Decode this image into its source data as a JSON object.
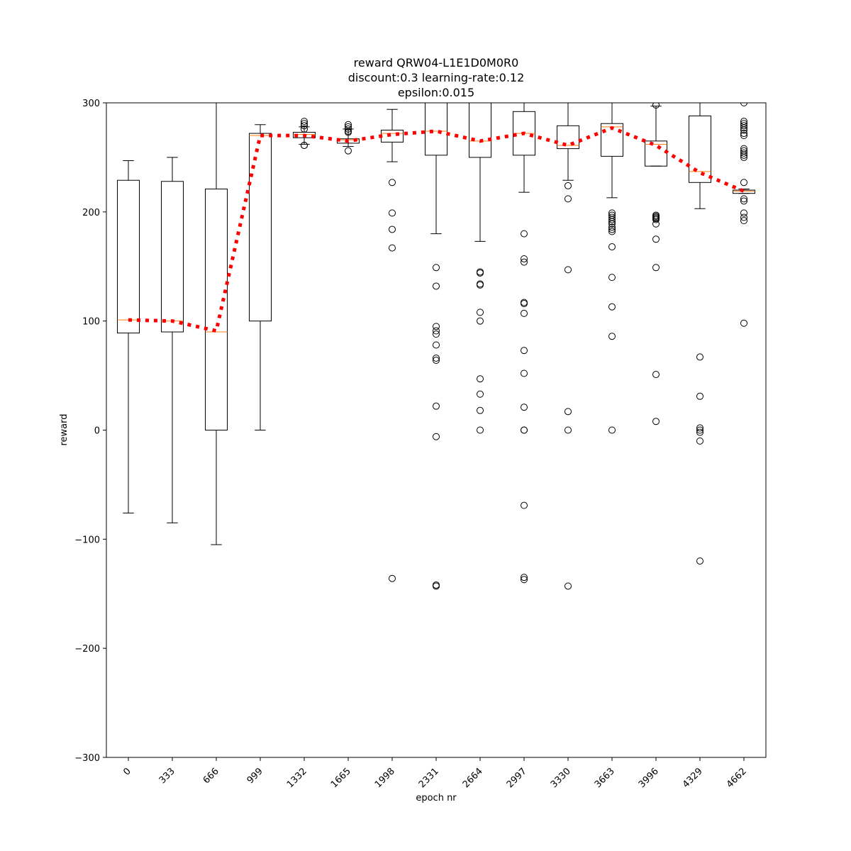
{
  "chart_data": {
    "type": "boxplot",
    "title": [
      "reward QRW04-L1E1D0M0R0",
      "discount:0.3 learning-rate:0.12",
      "epsilon:0.015"
    ],
    "xlabel": "epoch nr",
    "ylabel": "reward",
    "categories": [
      "0",
      "333",
      "666",
      "999",
      "1332",
      "1665",
      "1998",
      "2331",
      "2664",
      "2997",
      "3330",
      "3663",
      "3996",
      "4329",
      "4662"
    ],
    "ylim": [
      -300,
      300
    ],
    "yticks": [
      {
        "value": -300,
        "label": "−300"
      },
      {
        "value": -200,
        "label": "−200"
      },
      {
        "value": -100,
        "label": "−100"
      },
      0,
      100,
      200,
      300
    ],
    "box_color": "#000000",
    "median_color": "#ff7f0e",
    "boxes": [
      {
        "whislo": -76,
        "q1": 89,
        "med": 101,
        "q3": 229,
        "whishi": 247,
        "fliers": []
      },
      {
        "whislo": -85,
        "q1": 90,
        "med": 100,
        "q3": 228,
        "whishi": 250,
        "fliers": []
      },
      {
        "whislo": -105,
        "q1": 0,
        "med": 90,
        "q3": 221,
        "whishi": 300,
        "fliers": []
      },
      {
        "whislo": 0,
        "q1": 100,
        "med": 270,
        "q3": 272,
        "whishi": 280,
        "fliers": []
      },
      {
        "whislo": 262,
        "q1": 268,
        "med": 271,
        "q3": 273,
        "whishi": 278,
        "fliers": [
          261,
          261,
          276,
          279,
          281,
          283
        ]
      },
      {
        "whislo": 260,
        "q1": 263,
        "med": 266,
        "q3": 267,
        "whishi": 276,
        "fliers": [
          256,
          273,
          274,
          276,
          278,
          280
        ]
      },
      {
        "whislo": 246,
        "q1": 264,
        "med": 272,
        "q3": 275,
        "whishi": 294,
        "fliers": [
          227,
          199,
          184,
          167,
          -136
        ]
      },
      {
        "whislo": 180,
        "q1": 252,
        "med": 274,
        "q3": 300,
        "whishi": 300,
        "fliers": [
          149,
          132,
          95,
          91,
          88,
          78,
          66,
          64,
          22,
          -6,
          -142,
          -143
        ]
      },
      {
        "whislo": 173,
        "q1": 250,
        "med": 265,
        "q3": 300,
        "whishi": 300,
        "fliers": [
          145,
          144,
          134,
          133,
          108,
          100,
          47,
          33,
          18,
          0
        ]
      },
      {
        "whislo": 218,
        "q1": 252,
        "med": 272,
        "q3": 292,
        "whishi": 300,
        "fliers": [
          180,
          157,
          154,
          117,
          116,
          107,
          73,
          52,
          21,
          0,
          0,
          -69,
          -135,
          -137
        ]
      },
      {
        "whislo": 229,
        "q1": 258,
        "med": 261,
        "q3": 279,
        "whishi": 300,
        "fliers": [
          224,
          212,
          147,
          17,
          0,
          -143
        ]
      },
      {
        "whislo": 213,
        "q1": 251,
        "med": 278,
        "q3": 281,
        "whishi": 300,
        "fliers": [
          199,
          197,
          195,
          193,
          191,
          189,
          186,
          184,
          182,
          168,
          140,
          113,
          86,
          0
        ]
      },
      {
        "whislo": 242,
        "q1": 242,
        "med": 262,
        "q3": 265,
        "whishi": 297,
        "fliers": [
          298,
          197,
          196,
          195,
          194,
          193,
          189,
          175,
          149,
          51,
          8
        ]
      },
      {
        "whislo": 203,
        "q1": 227,
        "med": 237,
        "q3": 288,
        "whishi": 300,
        "fliers": [
          67,
          31,
          2,
          0,
          -2,
          -10,
          -120
        ]
      },
      {
        "whislo": 217,
        "q1": 217,
        "med": 219,
        "q3": 220,
        "whishi": 221,
        "fliers": [
          300,
          283,
          281,
          279,
          277,
          275,
          272,
          270,
          258,
          256,
          254,
          252,
          250,
          227,
          212,
          210,
          199,
          195,
          192,
          98
        ]
      }
    ],
    "trend": {
      "color": "#ff0000",
      "style": "dotted",
      "values": [
        101,
        100,
        91,
        270,
        270,
        265,
        271,
        274,
        265,
        272,
        261,
        277,
        261,
        236,
        219
      ]
    }
  }
}
